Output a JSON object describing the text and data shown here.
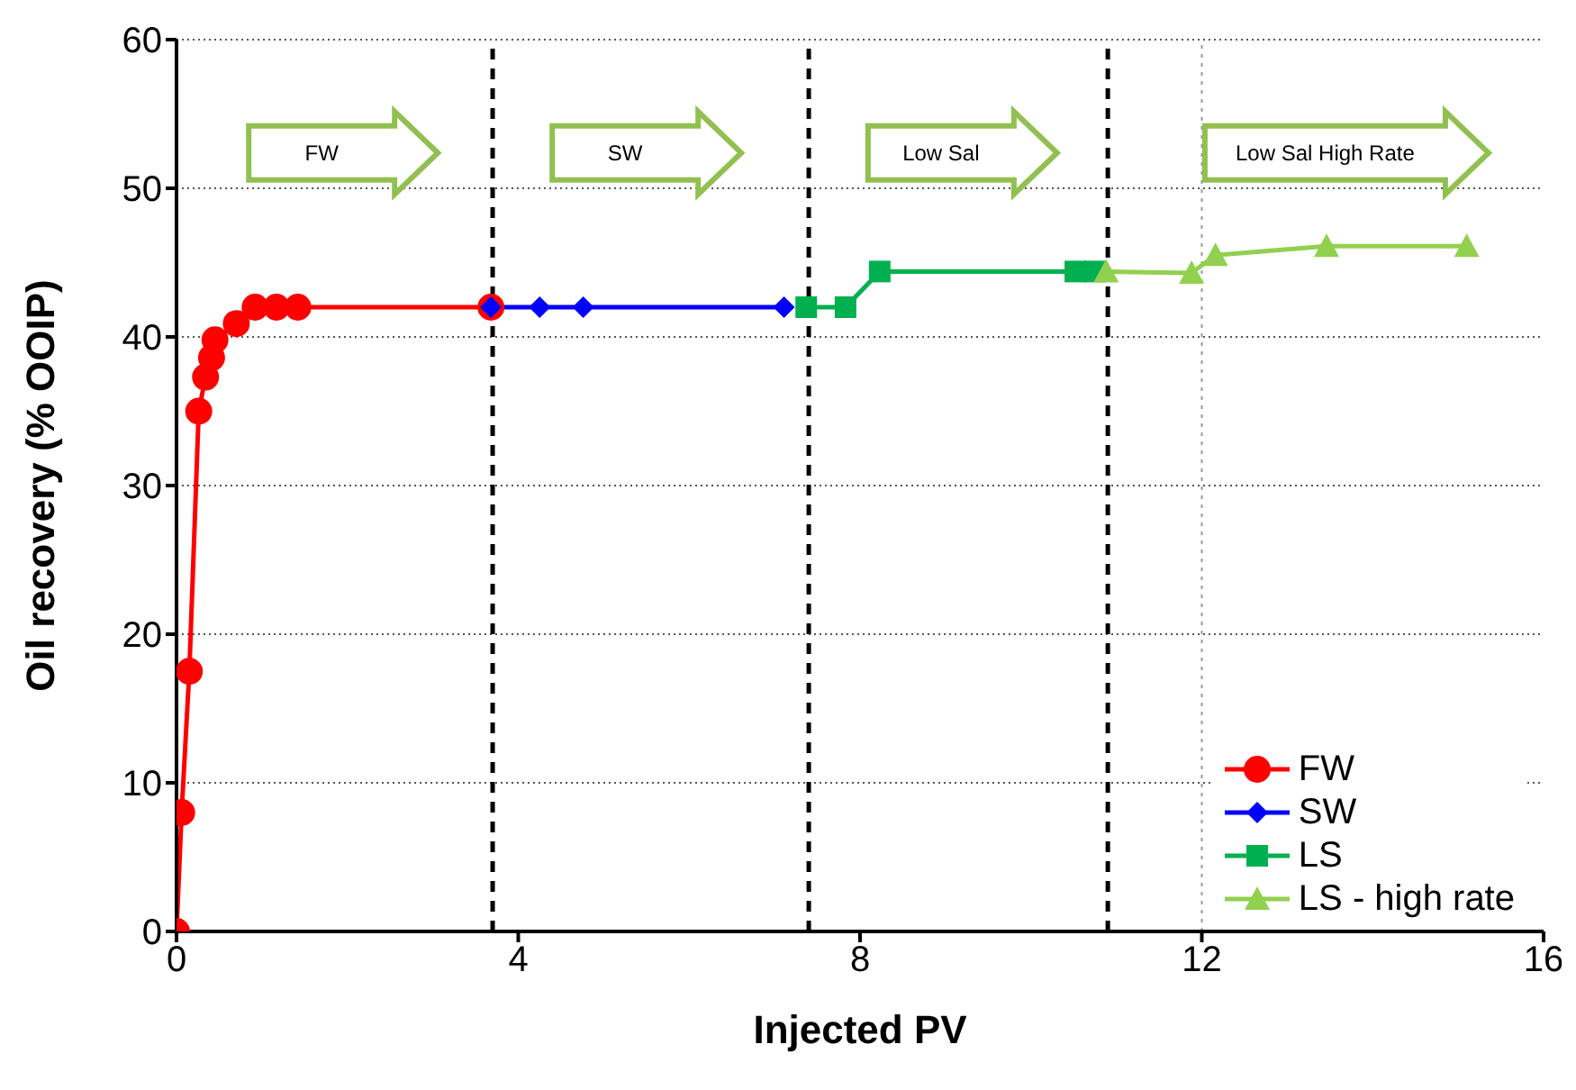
{
  "chart_data": {
    "type": "line",
    "xlabel": "Injected PV",
    "ylabel": "Oil recovery (% OOIP)",
    "xlim": [
      0,
      16
    ],
    "xticks": [
      0,
      4,
      8,
      12,
      16
    ],
    "ylim": [
      0,
      60
    ],
    "yticks": [
      0,
      10,
      20,
      30,
      40,
      50,
      60
    ],
    "grid": "y",
    "legend": "bottom right",
    "series": [
      {
        "name": "FW",
        "color": "#ff0000",
        "marker": "circle",
        "x": [
          0,
          0.06,
          0.15,
          0.26,
          0.34,
          0.41,
          0.45,
          0.7,
          0.92,
          1.17,
          1.42,
          3.68
        ],
        "values": [
          0,
          8,
          17.5,
          35,
          37.3,
          38.6,
          39.8,
          40.9,
          42,
          42,
          42,
          42
        ]
      },
      {
        "name": "SW",
        "color": "#0000ff",
        "marker": "diamond",
        "x": [
          3.68,
          4.25,
          4.76,
          7.11
        ],
        "values": [
          42,
          42,
          42,
          42
        ]
      },
      {
        "name": "LS",
        "color": "#00b050",
        "marker": "square",
        "x": [
          7.37,
          7.83,
          8.23,
          10.52,
          10.75
        ],
        "values": [
          42,
          42,
          44.4,
          44.4,
          44.4
        ]
      },
      {
        "name": "LS - high rate",
        "color": "#92d050",
        "marker": "triangle",
        "x": [
          10.88,
          11.88,
          12.16,
          13.46,
          15.1
        ],
        "values": [
          44.4,
          44.3,
          45.5,
          46.1,
          46.1
        ]
      }
    ],
    "ref_lines": [
      {
        "axis": "x",
        "value": 3.7,
        "color": "#000000",
        "line_style": "dashed"
      },
      {
        "axis": "x",
        "value": 7.4,
        "color": "#000000",
        "line_style": "dashed"
      },
      {
        "axis": "x",
        "value": 10.9,
        "color": "#000000",
        "line_style": "dashed"
      },
      {
        "axis": "x",
        "value": 12,
        "color": "#999999",
        "line_style": "dotted"
      }
    ],
    "annotations": [
      "FW",
      "SW",
      "Low Sal",
      "Low Sal High Rate"
    ]
  }
}
